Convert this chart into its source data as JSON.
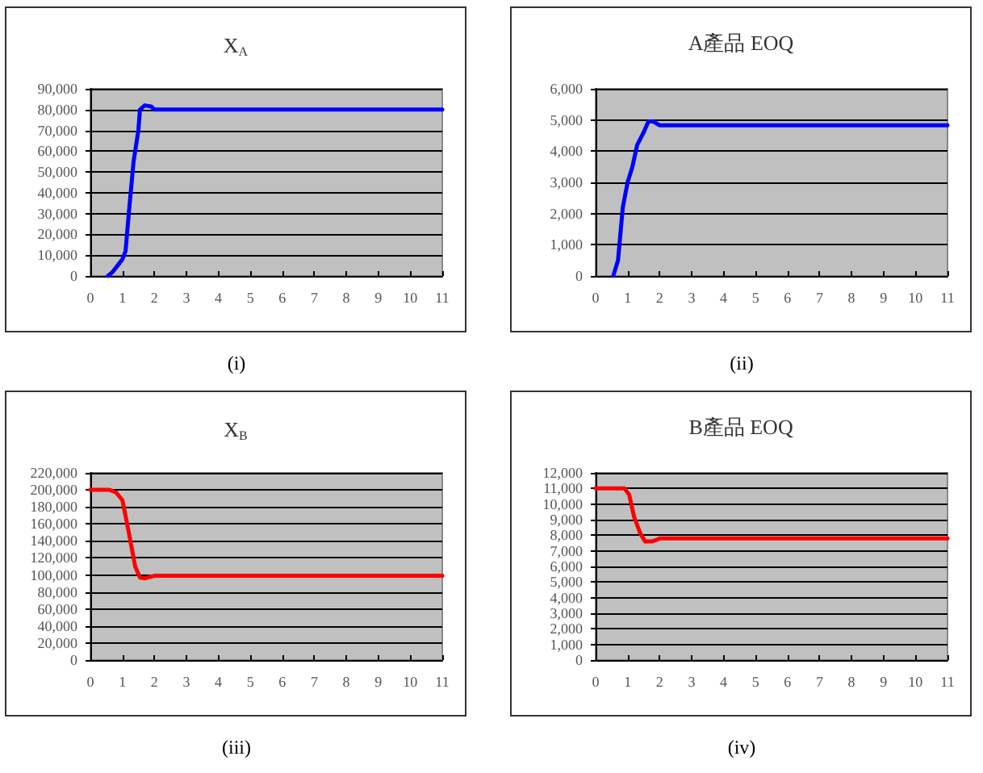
{
  "chart_data": [
    {
      "type": "line",
      "title": "X$_{A}$",
      "annotations": [
        "(i)"
      ],
      "x": [
        0.55,
        0.7,
        0.85,
        1.0,
        1.1,
        1.2,
        1.35,
        1.5,
        1.55,
        1.7,
        1.9,
        2,
        11
      ],
      "series": [
        {
          "color": "#0000ff",
          "values": [
            0,
            2000,
            5000,
            8000,
            12000,
            30000,
            55000,
            70000,
            80000,
            82000,
            81500,
            80000,
            80000
          ]
        }
      ],
      "xlim": [
        0,
        11
      ],
      "xticks": [
        0,
        1,
        2,
        3,
        4,
        5,
        6,
        7,
        8,
        9,
        10,
        11
      ],
      "ylim": [
        0,
        90000
      ],
      "yticks": [
        {
          "value": 0,
          "label": "0"
        },
        {
          "value": 10000,
          "label": "10,000"
        },
        {
          "value": 20000,
          "label": "20,000"
        },
        {
          "value": 30000,
          "label": "30,000"
        },
        {
          "value": 40000,
          "label": "40,000"
        },
        {
          "value": 50000,
          "label": "50,000"
        },
        {
          "value": 60000,
          "label": "60,000"
        },
        {
          "value": 70000,
          "label": "70,000"
        },
        {
          "value": 80000,
          "label": "80,000"
        },
        {
          "value": 90000,
          "label": "90,000"
        }
      ],
      "grid": "y",
      "marker": "none",
      "line_style": "solid"
    },
    {
      "type": "line",
      "title": "A產品 EOQ",
      "annotations": [
        "(ii)"
      ],
      "x": [
        0.55,
        0.7,
        0.85,
        1.0,
        1.15,
        1.3,
        1.5,
        1.65,
        1.8,
        2,
        11
      ],
      "series": [
        {
          "color": "#0000ff",
          "values": [
            0,
            500,
            2200,
            3000,
            3500,
            4200,
            4600,
            4950,
            4950,
            4830,
            4830
          ]
        }
      ],
      "xlim": [
        0,
        11
      ],
      "xticks": [
        0,
        1,
        2,
        3,
        4,
        5,
        6,
        7,
        8,
        9,
        10,
        11
      ],
      "ylim": [
        0,
        6000
      ],
      "yticks": [
        {
          "value": 0,
          "label": "0"
        },
        {
          "value": 1000,
          "label": "1,000"
        },
        {
          "value": 2000,
          "label": "2,000"
        },
        {
          "value": 3000,
          "label": "3,000"
        },
        {
          "value": 4000,
          "label": "4,000"
        },
        {
          "value": 5000,
          "label": "5,000"
        },
        {
          "value": 6000,
          "label": "6,000"
        }
      ],
      "grid": "y",
      "marker": "none",
      "line_style": "solid"
    },
    {
      "type": "line",
      "title": "X$_{B}$",
      "annotations": [
        "(iii)"
      ],
      "x": [
        0,
        0.6,
        0.8,
        1.0,
        1.2,
        1.4,
        1.55,
        1.7,
        1.9,
        2,
        11
      ],
      "series": [
        {
          "color": "#ff0000",
          "values": [
            200000,
            200000,
            197000,
            188000,
            150000,
            110000,
            97000,
            96000,
            98000,
            99000,
            99000
          ]
        }
      ],
      "xlim": [
        0,
        11
      ],
      "xticks": [
        0,
        1,
        2,
        3,
        4,
        5,
        6,
        7,
        8,
        9,
        10,
        11
      ],
      "ylim": [
        0,
        220000
      ],
      "yticks": [
        {
          "value": 0,
          "label": "0"
        },
        {
          "value": 20000,
          "label": "20,000"
        },
        {
          "value": 40000,
          "label": "40,000"
        },
        {
          "value": 60000,
          "label": "60,000"
        },
        {
          "value": 80000,
          "label": "80,000"
        },
        {
          "value": 100000,
          "label": "100,000"
        },
        {
          "value": 120000,
          "label": "120,000"
        },
        {
          "value": 140000,
          "label": "140,000"
        },
        {
          "value": 160000,
          "label": "160,000"
        },
        {
          "value": 180000,
          "label": "180,000"
        },
        {
          "value": 200000,
          "label": "200,000"
        },
        {
          "value": 220000,
          "label": "220,000"
        }
      ],
      "grid": "y",
      "marker": "none",
      "line_style": "solid"
    },
    {
      "type": "line",
      "title": "B產品 EOQ",
      "annotations": [
        "(iv)"
      ],
      "x": [
        0,
        0.9,
        1.05,
        1.2,
        1.4,
        1.55,
        1.75,
        1.9,
        2,
        11
      ],
      "series": [
        {
          "color": "#ff0000",
          "values": [
            11000,
            11000,
            10600,
            9200,
            8100,
            7600,
            7600,
            7700,
            7800,
            7800
          ]
        }
      ],
      "xlim": [
        0,
        11
      ],
      "xticks": [
        0,
        1,
        2,
        3,
        4,
        5,
        6,
        7,
        8,
        9,
        10,
        11
      ],
      "ylim": [
        0,
        12000
      ],
      "yticks": [
        {
          "value": 0,
          "label": "0"
        },
        {
          "value": 1000,
          "label": "1,000"
        },
        {
          "value": 2000,
          "label": "2,000"
        },
        {
          "value": 3000,
          "label": "3,000"
        },
        {
          "value": 4000,
          "label": "4,000"
        },
        {
          "value": 5000,
          "label": "5,000"
        },
        {
          "value": 6000,
          "label": "6,000"
        },
        {
          "value": 7000,
          "label": "7,000"
        },
        {
          "value": 8000,
          "label": "8,000"
        },
        {
          "value": 9000,
          "label": "9,000"
        },
        {
          "value": 10000,
          "label": "10,000"
        },
        {
          "value": 11000,
          "label": "11,000"
        },
        {
          "value": 12000,
          "label": "12,000"
        }
      ],
      "grid": "y",
      "marker": "none",
      "line_style": "solid"
    }
  ]
}
